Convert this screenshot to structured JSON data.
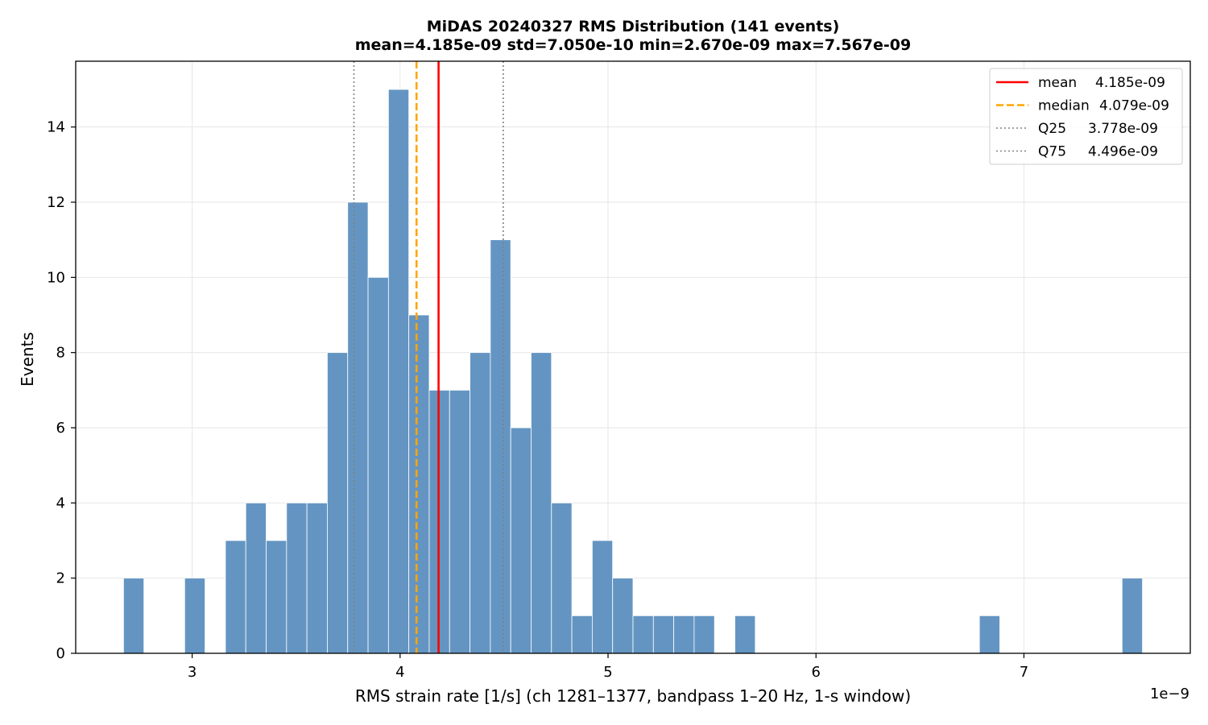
{
  "chart_data": {
    "type": "bar",
    "title": "MiDAS 20240327  RMS Distribution  (141 events)",
    "subtitle": "mean=4.185e-09  std=7.050e-10  min=2.670e-09  max=7.567e-09",
    "xlabel": "RMS strain rate [1/s]  (ch 1281–1377, bandpass 1–20 Hz, 1-s window)",
    "ylabel": "Events",
    "x_offset_label": "1e−9",
    "xlim": [
      2.44,
      7.8
    ],
    "ylim": [
      0,
      15.75
    ],
    "x_ticks": [
      3,
      4,
      5,
      6,
      7
    ],
    "x_tick_labels": [
      "3",
      "4",
      "5",
      "6",
      "7"
    ],
    "y_ticks": [
      0,
      2,
      4,
      6,
      8,
      10,
      12,
      14
    ],
    "y_tick_labels": [
      "0",
      "2",
      "4",
      "6",
      "8",
      "10",
      "12",
      "14"
    ],
    "grid": true,
    "legend_position": "top-right",
    "bin_start": 2.67,
    "bin_width": 0.098,
    "counts": [
      2,
      0,
      0,
      2,
      0,
      3,
      4,
      3,
      4,
      4,
      8,
      12,
      10,
      15,
      9,
      7,
      7,
      8,
      11,
      6,
      8,
      4,
      1,
      3,
      2,
      1,
      1,
      1,
      1,
      0,
      1,
      0,
      0,
      0,
      0,
      0,
      0,
      0,
      0,
      0,
      0,
      0,
      1,
      0,
      0,
      0,
      0,
      0,
      0,
      2
    ],
    "bar_color": "#6495c2",
    "lines": [
      {
        "name": "mean",
        "value_label": "4.185e-09",
        "x": 4.185,
        "color": "#ff0000",
        "style": "solid"
      },
      {
        "name": "median",
        "value_label": "4.079e-09",
        "x": 4.079,
        "color": "#ffa500",
        "style": "dashed"
      },
      {
        "name": "Q25",
        "value_label": "3.778e-09",
        "x": 3.778,
        "color": "#808080",
        "style": "dotted"
      },
      {
        "name": "Q75",
        "value_label": "4.496e-09",
        "x": 4.496,
        "color": "#808080",
        "style": "dotted"
      }
    ]
  }
}
